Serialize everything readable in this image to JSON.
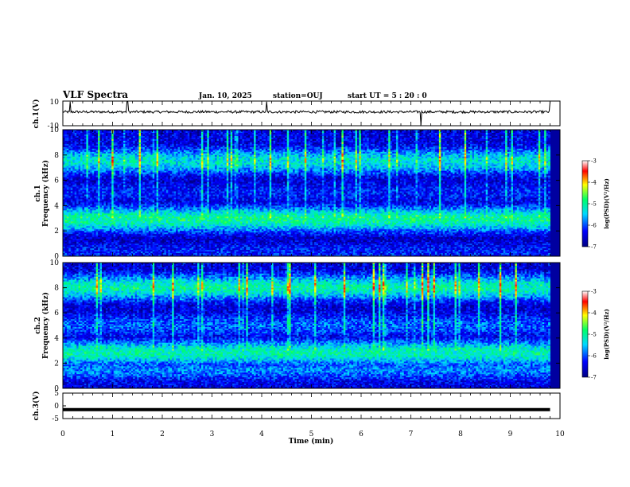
{
  "header": {
    "title": "VLF Spectra",
    "date": "Jan. 10, 2025",
    "station": "station=OUJ",
    "start": "start UT =  5 : 20 : 0"
  },
  "colors": {
    "spectrogram_low": "#000080",
    "spectrogram_mid": "#00ff66",
    "spectrogram_high": "#ff0000",
    "waveform": "#000000"
  },
  "chart_data": [
    {
      "type": "line",
      "panel": "ch1-waveform",
      "ylabel": "ch.1(V)",
      "ylim": [
        -10,
        10
      ],
      "y_ticks": [
        "10",
        "-10"
      ],
      "x_range_min": [
        0,
        9.8
      ],
      "series": [
        {
          "baseline": 1.2,
          "noise_amplitude": 1.0,
          "spikes": [
            0.15,
            1.3,
            4.1,
            7.2,
            9.8
          ]
        }
      ]
    },
    {
      "type": "heatmap",
      "panel": "ch1-spectrogram",
      "ylabel": "ch.1\nFrequency  (kHz)",
      "ylim": [
        0,
        10
      ],
      "y_ticks": [
        "0",
        "2",
        "4",
        "6",
        "8",
        "10"
      ],
      "x_range_min": [
        0,
        9.8
      ],
      "bands_khz": [
        {
          "f": 0.3,
          "level": -6.2
        },
        {
          "f": 1.5,
          "level": -6.8
        },
        {
          "f": 2.9,
          "level": -5.0
        },
        {
          "f": 5.0,
          "level": -6.3
        },
        {
          "f": 7.5,
          "level": -5.4
        }
      ],
      "colorbar": {
        "label": "log(PSD)(V²/Hz)",
        "range": [
          -7,
          -3
        ],
        "ticks": [
          "-3",
          "-4",
          "-5",
          "-6",
          "-7"
        ]
      }
    },
    {
      "type": "heatmap",
      "panel": "ch2-spectrogram",
      "ylabel": "ch.2\nFrequency  (kHz)",
      "ylim": [
        0,
        10
      ],
      "y_ticks": [
        "0",
        "2",
        "4",
        "6",
        "8",
        "10"
      ],
      "x_range_min": [
        0,
        9.8
      ],
      "bands_khz": [
        {
          "f": 0.4,
          "level": -6.4
        },
        {
          "f": 1.5,
          "level": -5.8
        },
        {
          "f": 2.8,
          "level": -5.1
        },
        {
          "f": 5.0,
          "level": -6.0
        },
        {
          "f": 8.0,
          "level": -5.2
        }
      ],
      "colorbar": {
        "label": "log(PSD)(V²/Hz)",
        "range": [
          -7,
          -3
        ],
        "ticks": [
          "-3",
          "-4",
          "-5",
          "-6",
          "-7"
        ]
      }
    },
    {
      "type": "line",
      "panel": "ch3-trace",
      "ylabel": "ch.3(V)",
      "ylim": [
        -5,
        5
      ],
      "y_ticks": [
        "5",
        "0",
        "-5"
      ],
      "x_range_min": [
        0,
        9.8
      ],
      "series": [
        {
          "value": -1.5
        }
      ]
    }
  ],
  "x_axis": {
    "label": "Time  (min)",
    "range": [
      0,
      10
    ],
    "ticks": [
      "0",
      "1",
      "2",
      "3",
      "4",
      "5",
      "6",
      "7",
      "8",
      "9",
      "10"
    ]
  }
}
